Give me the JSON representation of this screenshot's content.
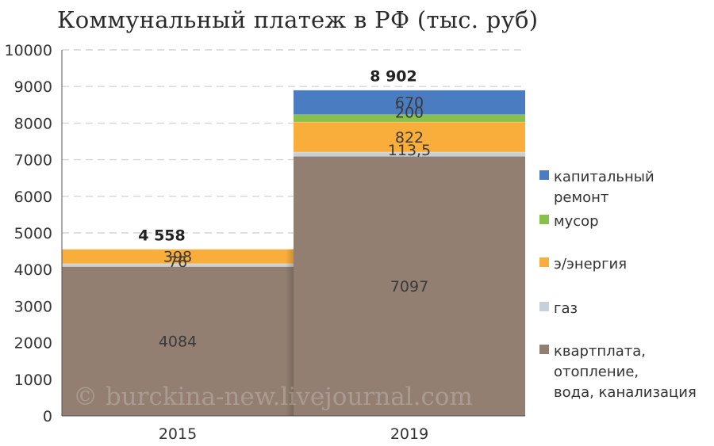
{
  "chart_data": {
    "type": "bar",
    "stacked": true,
    "title": "Коммунальный платеж в РФ (тыс. руб)",
    "categories": [
      "2015",
      "2019"
    ],
    "ylim": [
      0,
      10000
    ],
    "yticks": [
      "0",
      "1000",
      "2000",
      "3000",
      "4000",
      "5000",
      "6000",
      "7000",
      "8000",
      "9000",
      "10000"
    ],
    "grid": true,
    "legend_position": "right",
    "series": [
      {
        "name": "квартплата, отопление, вода, канализация",
        "legend_lines": [
          "квартплата,",
          "отопление,",
          "вода, канализация"
        ],
        "color": "#937f72",
        "values": [
          4084,
          7097
        ],
        "labels": [
          "4084",
          "7097"
        ]
      },
      {
        "name": "газ",
        "legend_lines": [
          "газ"
        ],
        "color": "#c5d0d9",
        "values": [
          76,
          113.5
        ],
        "labels": [
          "76",
          "113,5"
        ]
      },
      {
        "name": "э/энергия",
        "legend_lines": [
          "э/энергия"
        ],
        "color": "#f9ae3b",
        "values": [
          398,
          822
        ],
        "labels": [
          "398",
          "822"
        ]
      },
      {
        "name": "мусор",
        "legend_lines": [
          "мусор"
        ],
        "color": "#88c14a",
        "values": [
          0,
          200
        ],
        "labels": [
          "",
          "200"
        ]
      },
      {
        "name": "капитальный ремонт",
        "legend_lines": [
          "капитальный",
          "ремонт"
        ],
        "color": "#4a7cc1",
        "values": [
          0,
          670
        ],
        "labels": [
          "",
          "670"
        ]
      }
    ],
    "totals": [
      "4 558",
      "8 902"
    ],
    "watermark": "© burckina-new.livejournal.com"
  }
}
